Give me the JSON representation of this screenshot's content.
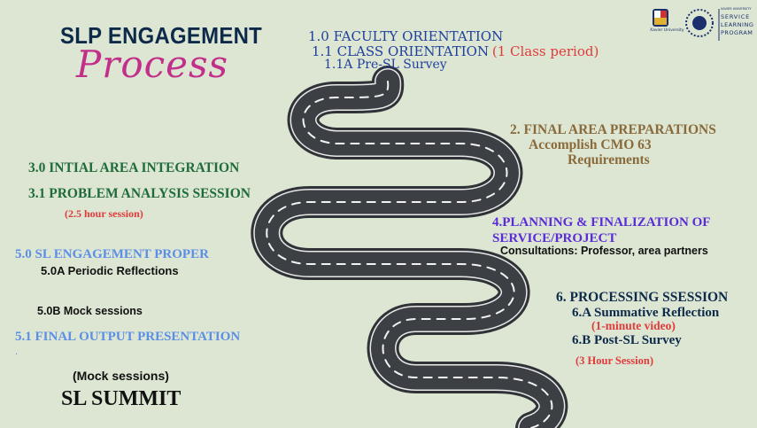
{
  "title": {
    "line1": "SLP ENGAGEMENT",
    "line2": "Process"
  },
  "logos": {
    "university_caption": "Xavier University",
    "program_small": "XAVIER UNIVERSITY",
    "program_line1": "SERVICE",
    "program_line2": "LEARNING",
    "program_line3": "PROGRAM"
  },
  "steps": {
    "s1_0": "1.0 FACULTY ORIENTATION",
    "s1_1": "1.1 CLASS ORIENTATION",
    "s1_1_note": "(1 Class period)",
    "s1_1a": "1.1A Pre-SL Survey",
    "s2": "2.  FINAL AREA PREPARATIONS",
    "s2_line2": "Accomplish CMO 63",
    "s2_line3": "Requirements",
    "s3_0": "3.0 INTIAL AREA INTEGRATION",
    "s3_1": "3.1   PROBLEM ANALYSIS SESSION",
    "s3_1_note": "(2.5 hour session)",
    "s4_line1": "4.PLANNING & FINALIZATION OF",
    "s4_line2": "SERVICE/PROJECT",
    "s4_note": "Consultations: Professor, area partners",
    "s5_0": "5.0 SL ENGAGEMENT PROPER",
    "s5_0a": "5.0A  Periodic Reflections",
    "s5_0b": "5.0B Mock sessions",
    "s5_1": "5.1 FINAL OUTPUT PRESENTATION",
    "s5_1_dot": ".",
    "s6": "6. PROCESSING SSESSION",
    "s6a": "6.A Summative Reflection",
    "s6a_note": "(1-minute video)",
    "s6b": "6.B Post-SL Survey",
    "s6_note": "(3 Hour Session)",
    "mock": "(Mock sessions)",
    "summit": "SL SUMMIT"
  },
  "colors": {
    "background": "#dce6d3",
    "navy": "#0e2a4a",
    "blue_heading": "#1f3f9c",
    "red_note": "#e03a3a",
    "brown": "#8a6a3a",
    "green": "#1f6b3a",
    "purple": "#5a2bd6",
    "light_blue": "#5b8ee6",
    "magenta": "#c22f8a",
    "road": "#3a3d42"
  }
}
